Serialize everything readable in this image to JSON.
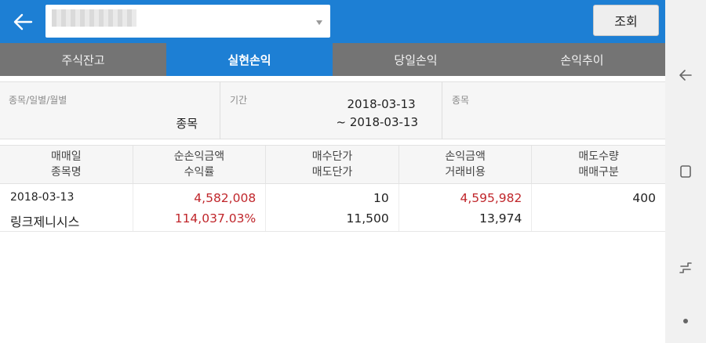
{
  "header": {
    "query_button": "조회"
  },
  "tabs": [
    {
      "label": "주식잔고",
      "active": false
    },
    {
      "label": "실현손익",
      "active": true
    },
    {
      "label": "당일손익",
      "active": false
    },
    {
      "label": "손익추이",
      "active": false
    }
  ],
  "filters": {
    "type_label": "종목/일별/월별",
    "type_value": "종목",
    "period_label": "기간",
    "period_start": "2018-03-13",
    "period_end": "~ 2018-03-13",
    "stock_label": "종목",
    "stock_value": ""
  },
  "table": {
    "headers": [
      [
        "매매일",
        "종목명"
      ],
      [
        "순손익금액",
        "수익률"
      ],
      [
        "매수단가",
        "매도단가"
      ],
      [
        "손익금액",
        "거래비용"
      ],
      [
        "매도수량",
        "매매구분"
      ]
    ],
    "rows": [
      {
        "trade_date": "2018-03-13",
        "stock_name": "링크제니시스",
        "net_profit": "4,582,008",
        "return_rate": "114,037.03%",
        "buy_price": "10",
        "sell_price": "11,500",
        "profit_amount": "4,595,982",
        "trade_cost": "13,974",
        "sell_qty": "400",
        "trade_type": ""
      }
    ]
  },
  "colors": {
    "header_blue": "#1d7fd4",
    "tab_gray": "#747474",
    "profit_red": "#c0262b"
  },
  "icons": {
    "back": "arrow-left-icon",
    "caret": "chevron-down-icon",
    "nav_back": "nav-back-icon",
    "nav_recent": "nav-recent-icon",
    "nav_switch": "nav-switch-icon",
    "nav_dot": "nav-dot-icon"
  }
}
